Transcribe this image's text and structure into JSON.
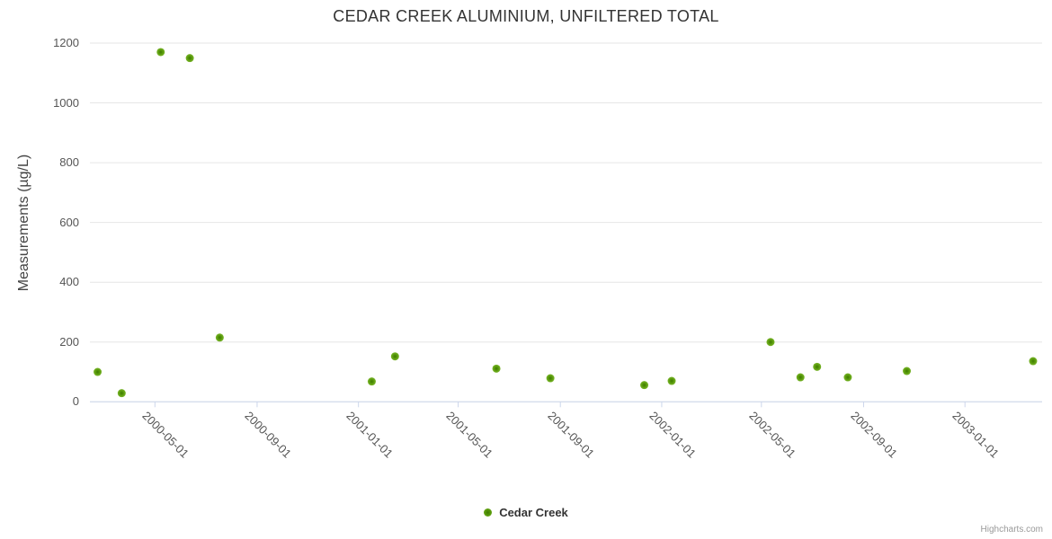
{
  "chart": {
    "title": "CEDAR CREEK ALUMINIUM, UNFILTERED TOTAL",
    "y_axis_title": "Measurements (µg/L)",
    "legend_label": "Cedar Creek",
    "credit": "Highcharts.com"
  },
  "chart_data": {
    "type": "scatter",
    "title": "CEDAR CREEK ALUMINIUM, UNFILTERED TOTAL",
    "xlabel": "",
    "ylabel": "Measurements (µg/L)",
    "ylim": [
      0,
      1200
    ],
    "y_ticks": [
      0,
      200,
      400,
      600,
      800,
      1000,
      1200
    ],
    "x_tick_labels": [
      "2000-05-01",
      "2000-09-01",
      "2001-01-01",
      "2001-05-01",
      "2001-09-01",
      "2002-01-01",
      "2002-05-01",
      "2002-09-01",
      "2003-01-01"
    ],
    "grid": "horizontal",
    "legend_position": "bottom-center",
    "series": [
      {
        "name": "Cedar Creek",
        "points": [
          {
            "x": "2000-02-22",
            "y": 100
          },
          {
            "x": "2000-03-22",
            "y": 29
          },
          {
            "x": "2000-05-08",
            "y": 1170
          },
          {
            "x": "2000-06-12",
            "y": 1150
          },
          {
            "x": "2000-07-18",
            "y": 215
          },
          {
            "x": "2001-01-17",
            "y": 68
          },
          {
            "x": "2001-02-14",
            "y": 152
          },
          {
            "x": "2001-06-16",
            "y": 111
          },
          {
            "x": "2001-08-20",
            "y": 79
          },
          {
            "x": "2001-12-11",
            "y": 56
          },
          {
            "x": "2002-01-13",
            "y": 70
          },
          {
            "x": "2002-05-12",
            "y": 200
          },
          {
            "x": "2002-06-17",
            "y": 82
          },
          {
            "x": "2002-07-07",
            "y": 117
          },
          {
            "x": "2002-08-13",
            "y": 82
          },
          {
            "x": "2002-10-23",
            "y": 103
          },
          {
            "x": "2003-03-24",
            "y": 136
          }
        ]
      }
    ],
    "colors": {
      "marker_core": "#3e7a01",
      "marker_mid": "#58990b",
      "marker_edge": "#79b52a",
      "grid_line": "#e6e6e6",
      "axis_line": "#ccd6eb",
      "title_text": "#333333",
      "axis_label_text": "#555555",
      "credit_text": "#999999"
    }
  }
}
